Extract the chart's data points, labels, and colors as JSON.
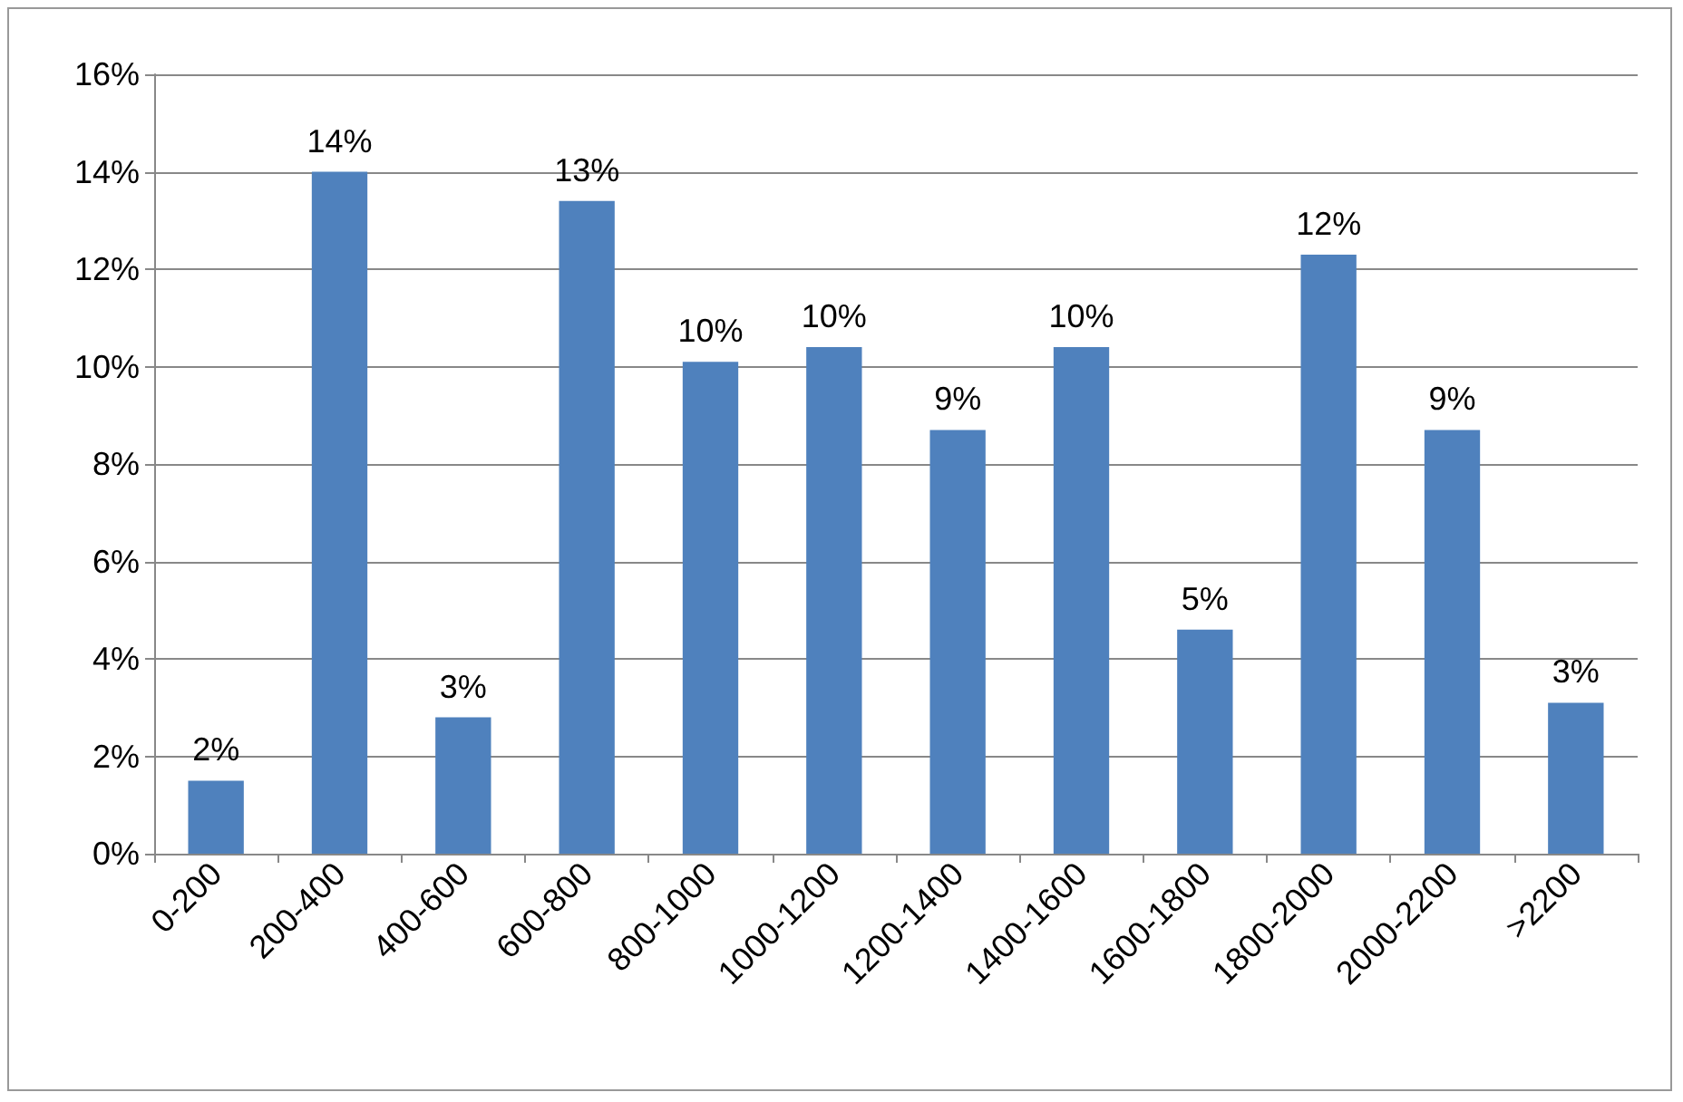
{
  "chart_data": {
    "type": "bar",
    "categories": [
      "0-200",
      "200-400",
      "400-600",
      "600-800",
      "800-1000",
      "1000-1200",
      "1200-1400",
      "1400-1600",
      "1600-1800",
      "1800-2000",
      "2000-2200",
      ">2200"
    ],
    "values": [
      1.5,
      14.0,
      2.8,
      13.4,
      10.1,
      10.4,
      8.7,
      10.4,
      4.6,
      12.3,
      8.7,
      3.1
    ],
    "value_labels": [
      "2%",
      "14%",
      "3%",
      "13%",
      "10%",
      "10%",
      "9%",
      "10%",
      "5%",
      "12%",
      "9%",
      "3%"
    ],
    "color": "#4f81bd",
    "ylim": [
      0,
      16
    ],
    "yticks": [
      {
        "value": 0,
        "label": "0%"
      },
      {
        "value": 2,
        "label": "2%"
      },
      {
        "value": 4,
        "label": "4%"
      },
      {
        "value": 6,
        "label": "6%"
      },
      {
        "value": 8,
        "label": "8%"
      },
      {
        "value": 10,
        "label": "10%"
      },
      {
        "value": 12,
        "label": "12%"
      },
      {
        "value": 14,
        "label": "14%"
      },
      {
        "value": 16,
        "label": "16%"
      }
    ],
    "grid": "y"
  }
}
